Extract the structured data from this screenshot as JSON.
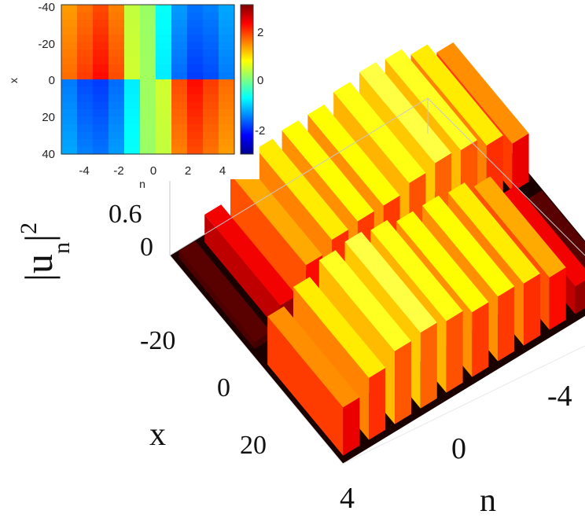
{
  "chart_data": [
    {
      "type": "heatmap",
      "title": "",
      "xlabel": "n",
      "ylabel": "x",
      "x_ticks": [
        "-4",
        "-2",
        "0",
        "2",
        "4"
      ],
      "y_ticks": [
        "-40",
        "-20",
        "0",
        "20",
        "40"
      ],
      "xlim": [
        -5,
        5
      ],
      "ylim": [
        -40,
        40
      ],
      "n_sites": [
        -5,
        -4,
        -3,
        -2,
        -1,
        0,
        1,
        2,
        3,
        4,
        5
      ],
      "phase_upper": [
        1.7,
        2.0,
        2.3,
        1.9,
        0.5,
        0.2,
        -0.9,
        -1.7,
        -2.0,
        -1.9,
        -1.6
      ],
      "phase_lower": [
        -1.6,
        -1.9,
        -2.0,
        -1.7,
        -0.9,
        0.2,
        0.5,
        1.9,
        2.3,
        2.0,
        1.7
      ],
      "colorbar": {
        "ticks": [
          "2",
          "0",
          "-2"
        ],
        "range": [
          -3.14,
          3.14
        ],
        "colormap": "jet"
      }
    },
    {
      "type": "surface",
      "title": "",
      "xlabel": "n",
      "ylabel": "x",
      "zlabel": "|u",
      "zlabel_sub": "n",
      "zlabel_sup": "2",
      "zlabel_close": "|",
      "x_ticks": [
        "4",
        "0",
        "-4"
      ],
      "y_ticks": [
        "-20",
        "0",
        "20"
      ],
      "z_ticks": [
        "0.6",
        "0"
      ],
      "zlim": [
        0,
        0.6
      ],
      "ylim": [
        -40,
        40
      ],
      "n_sites": [
        -5,
        -4,
        -3,
        -2,
        -1,
        0,
        1,
        2,
        3,
        4,
        5
      ],
      "amplitude_x_negative": [
        0.05,
        0.2,
        0.38,
        0.45,
        0.47,
        0.47,
        0.52,
        0.55,
        0.53,
        0.45,
        0.35
      ],
      "amplitude_x_positive": [
        0.35,
        0.45,
        0.53,
        0.55,
        0.52,
        0.47,
        0.47,
        0.45,
        0.38,
        0.2,
        0.05
      ],
      "colormap": "hot"
    }
  ]
}
